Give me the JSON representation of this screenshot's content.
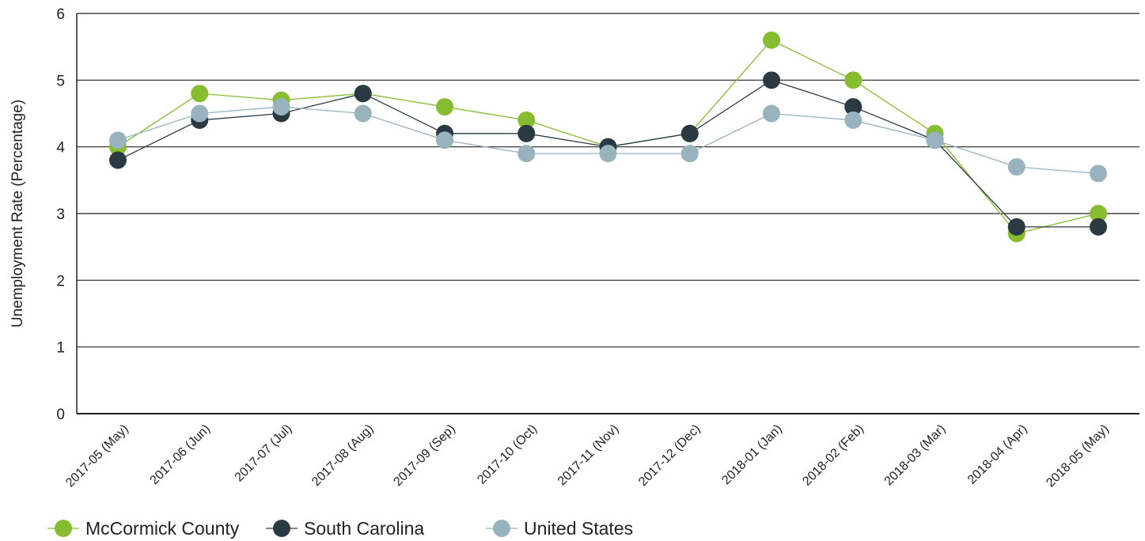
{
  "chart_data": {
    "type": "line",
    "title": "",
    "xlabel": "",
    "ylabel": "Unemployment Rate (Percentage)",
    "ylim": [
      0,
      6
    ],
    "yticks": [
      0,
      1,
      2,
      3,
      4,
      5,
      6
    ],
    "grid": "horizontal",
    "legend_position": "bottom-left",
    "categories": [
      "2017-05 (May)",
      "2017-06 (Jun)",
      "2017-07 (Jul)",
      "2017-08 (Aug)",
      "2017-09 (Sep)",
      "2017-10 (Oct)",
      "2017-11 (Nov)",
      "2017-12 (Dec)",
      "2018-01 (Jan)",
      "2018-02 (Feb)",
      "2018-03 (Mar)",
      "2018-04 (Apr)",
      "2018-05 (May)"
    ],
    "series": [
      {
        "name": "McCormick County",
        "color": "#86bc30",
        "values": [
          4.0,
          4.8,
          4.7,
          4.8,
          4.6,
          4.4,
          4.0,
          4.2,
          5.6,
          5.0,
          4.2,
          2.7,
          3.0
        ]
      },
      {
        "name": "South Carolina",
        "color": "#2b3a42",
        "values": [
          3.8,
          4.4,
          4.5,
          4.8,
          4.2,
          4.2,
          4.0,
          4.2,
          5.0,
          4.6,
          4.1,
          2.8,
          2.8
        ]
      },
      {
        "name": "United States",
        "color": "#98b2be",
        "values": [
          4.1,
          4.5,
          4.6,
          4.5,
          4.1,
          3.9,
          3.9,
          3.9,
          4.5,
          4.4,
          4.1,
          3.7,
          3.6
        ]
      }
    ]
  }
}
